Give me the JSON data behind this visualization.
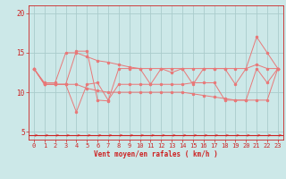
{
  "xlabel": "Vent moyen/en rafales ( km/h )",
  "background_color": "#cce8e8",
  "grid_color": "#aacccc",
  "line_color": "#e87878",
  "arrow_color": "#e05050",
  "x": [
    0,
    1,
    2,
    3,
    4,
    5,
    6,
    7,
    8,
    9,
    10,
    11,
    12,
    13,
    14,
    15,
    16,
    17,
    18,
    19,
    20,
    21,
    22,
    23
  ],
  "line1": [
    13,
    11,
    11,
    11,
    15.2,
    15.2,
    9.0,
    8.9,
    13,
    13,
    13,
    11,
    13,
    12.5,
    13,
    11,
    13,
    13,
    13,
    11,
    13,
    17,
    15,
    13
  ],
  "line2": [
    13,
    11,
    11,
    11,
    7.5,
    11,
    11.2,
    9.0,
    11,
    11,
    11,
    11,
    11,
    11,
    11,
    11.2,
    11.2,
    11.2,
    9.0,
    9.0,
    9.0,
    13,
    11.2,
    13
  ],
  "line3": [
    13,
    11.2,
    11.2,
    15,
    15,
    14.5,
    14,
    13.8,
    13.5,
    13.2,
    13,
    13,
    13,
    13,
    13,
    13,
    13,
    13,
    13,
    13,
    13,
    13.5,
    13,
    13
  ],
  "line4": [
    13,
    11,
    11,
    11,
    11,
    10.5,
    10.2,
    10,
    10,
    10,
    10,
    10,
    10,
    10,
    10,
    9.8,
    9.6,
    9.4,
    9.2,
    9.0,
    9.0,
    9.0,
    9.0,
    13
  ],
  "ylim": [
    4,
    21
  ],
  "yticks": [
    5,
    10,
    15,
    20
  ],
  "xticks": [
    0,
    1,
    2,
    3,
    4,
    5,
    6,
    7,
    8,
    9,
    10,
    11,
    12,
    13,
    14,
    15,
    16,
    17,
    18,
    19,
    20,
    21,
    22,
    23
  ]
}
